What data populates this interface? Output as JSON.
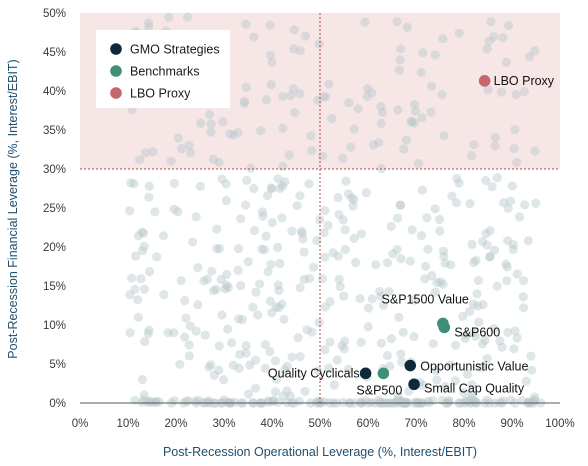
{
  "chart_data": {
    "type": "scatter",
    "xlabel": "Post-Recession Operational Leverage (%, Interest/EBIT)",
    "ylabel": "Post-Recession Financial Leverage (%, Interest/EBIT)",
    "xlim": [
      0,
      100
    ],
    "ylim": [
      0,
      50
    ],
    "x_ticks": [
      "0%",
      "10%",
      "20%",
      "30%",
      "40%",
      "50%",
      "60%",
      "70%",
      "80%",
      "90%",
      "100%"
    ],
    "y_ticks": [
      "0%",
      "5%",
      "10%",
      "15%",
      "20%",
      "25%",
      "30%",
      "35%",
      "40%",
      "45%",
      "50%"
    ],
    "x_tick_values": [
      0,
      10,
      20,
      30,
      40,
      50,
      60,
      70,
      80,
      90,
      100
    ],
    "y_tick_values": [
      0,
      5,
      10,
      15,
      20,
      25,
      30,
      35,
      40,
      45,
      50
    ],
    "grid": false,
    "threshold_lines": {
      "x": 50,
      "y": 30
    },
    "shaded_region": {
      "y_min": 30,
      "y_max": 50,
      "color": "#f6e6e6"
    },
    "background_cloud_color": "#b9c8cd",
    "legend": {
      "placement": "top-left",
      "entries": [
        {
          "name": "GMO Strategies",
          "color": "#0e2a3a"
        },
        {
          "name": "Benchmarks",
          "color": "#3f8f78"
        },
        {
          "name": "LBO Proxy",
          "color": "#c4676c"
        }
      ]
    },
    "series": [
      {
        "name": "GMO Strategies",
        "color": "#0e2a3a",
        "points": [
          {
            "label": "Quality Cyclicals",
            "x": 59.5,
            "y": 3.8
          },
          {
            "label": "Opportunistic Value",
            "x": 68.8,
            "y": 4.8
          },
          {
            "label": "Small Cap Quality",
            "x": 69.6,
            "y": 2.4
          }
        ]
      },
      {
        "name": "Benchmarks",
        "color": "#3f8f78",
        "points": [
          {
            "label": "S&P1500 Value",
            "x": 75.6,
            "y": 10.2
          },
          {
            "label": "S&P600",
            "x": 75.9,
            "y": 9.7
          },
          {
            "label": "S&P500",
            "x": 63.2,
            "y": 3.8
          }
        ]
      },
      {
        "name": "LBO Proxy",
        "color": "#c4676c",
        "points": [
          {
            "label": "LBO Proxy",
            "x": 84.3,
            "y": 41.3
          }
        ]
      }
    ]
  }
}
